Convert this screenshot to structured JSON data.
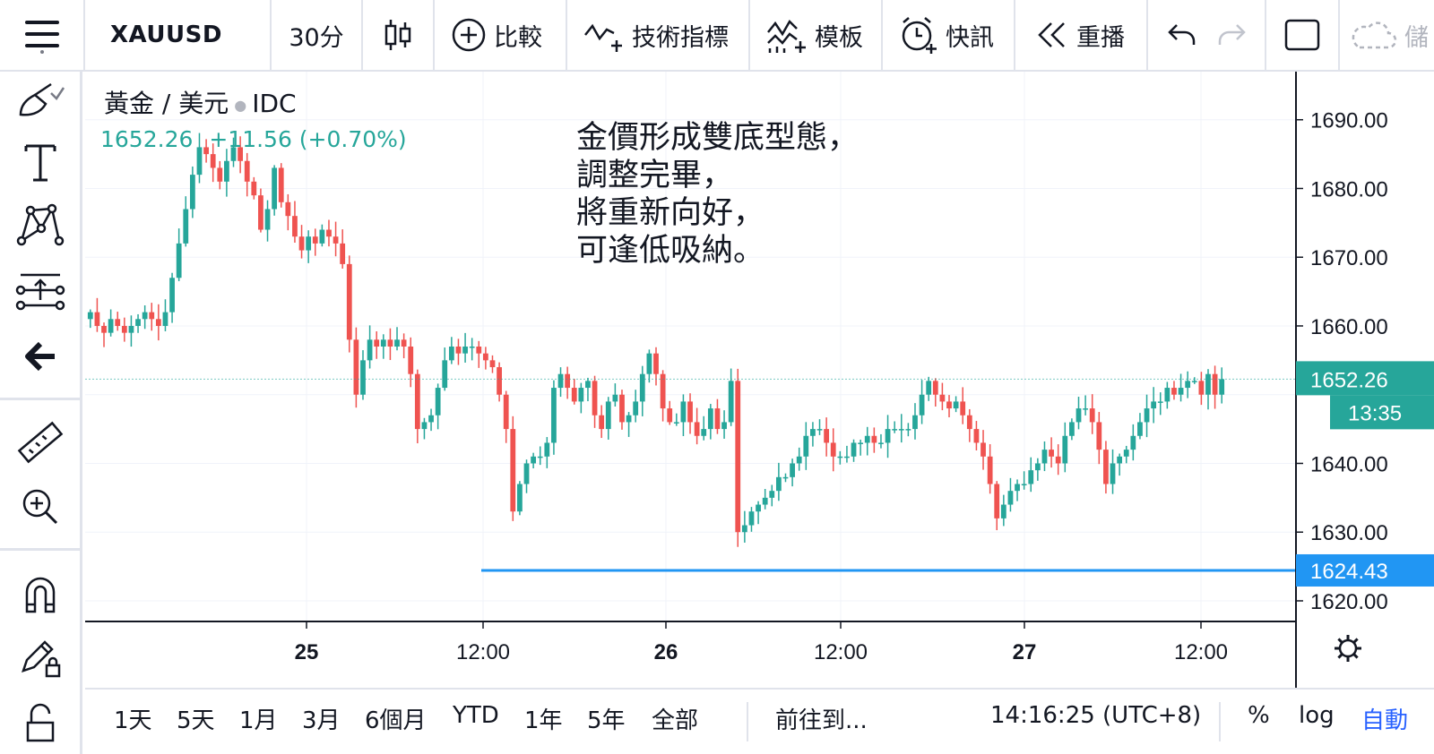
{
  "toolbar": {
    "symbol": "XAUUSD",
    "interval": "30分",
    "compare": "比較",
    "indicators": "技術指標",
    "templates": "模板",
    "alerts": "快訊",
    "replay": "重播",
    "cloud": "儲"
  },
  "legend": {
    "name": "黃金 / 美元",
    "exchange": "IDC",
    "price": "1652.26",
    "change": "+11.56 (+0.70%)"
  },
  "annotation": "金價形成雙底型態，\n調整完畢，\n將重新向好，\n可逢低吸納。",
  "price_axis": {
    "ticks": [
      "1690.00",
      "1680.00",
      "1670.00",
      "1660.00",
      "1640.00",
      "1630.00",
      "1620.00"
    ],
    "last_price": "1652.26",
    "countdown": "13:35",
    "hline_price": "1624.43"
  },
  "time_axis": {
    "labels": [
      {
        "text": "25",
        "bold": true
      },
      {
        "text": "12:00",
        "bold": false
      },
      {
        "text": "26",
        "bold": true
      },
      {
        "text": "12:00",
        "bold": false
      },
      {
        "text": "27",
        "bold": true
      },
      {
        "text": "12:00",
        "bold": false
      }
    ]
  },
  "bottombar": {
    "ranges": [
      "1天",
      "5天",
      "1月",
      "3月",
      "6個月",
      "YTD",
      "1年",
      "5年",
      "全部"
    ],
    "goto": "前往到...",
    "clock": "14:16:25 (UTC+8)",
    "percent": "%",
    "log": "log",
    "auto": "自動"
  },
  "colors": {
    "up": "#26a69a",
    "down": "#ef5350",
    "hline": "#2196f3",
    "auto_active": "#2962ff"
  },
  "chart_data": {
    "type": "candlestick",
    "ylim": [
      1617,
      1697
    ],
    "hline": 1624.43,
    "last": 1652.26,
    "time_labels": [
      "25",
      "12:00",
      "26",
      "12:00",
      "27",
      "12:00"
    ],
    "closes": [
      1662,
      1660,
      1659,
      1661,
      1660,
      1659,
      1660,
      1661,
      1662,
      1661,
      1660,
      1662,
      1667,
      1672,
      1677,
      1682,
      1686,
      1685,
      1683,
      1681,
      1684,
      1686,
      1684,
      1681,
      1679,
      1674,
      1677,
      1683,
      1678,
      1676,
      1673,
      1671,
      1673,
      1672,
      1674,
      1673,
      1672,
      1669,
      1658,
      1650,
      1655,
      1658,
      1657,
      1658,
      1657,
      1658,
      1657,
      1653,
      1645,
      1646,
      1647,
      1651,
      1655,
      1657,
      1656,
      1657,
      1657,
      1656,
      1655,
      1654,
      1650,
      1645,
      1633,
      1637,
      1640,
      1641,
      1641,
      1643,
      1651,
      1653,
      1651,
      1649,
      1651,
      1652,
      1647,
      1645,
      1649,
      1650,
      1646,
      1647,
      1649,
      1653,
      1656,
      1653,
      1648,
      1646,
      1646,
      1649,
      1646,
      1644,
      1645,
      1648,
      1645,
      1646,
      1652,
      1630,
      1631,
      1633,
      1634,
      1635,
      1636,
      1638,
      1638,
      1640,
      1641,
      1644,
      1645,
      1645,
      1643,
      1641,
      1641,
      1641,
      1643,
      1643,
      1644,
      1643,
      1643,
      1645,
      1645,
      1645,
      1645,
      1647,
      1650,
      1652,
      1650,
      1649,
      1648,
      1649,
      1647,
      1645,
      1643,
      1641,
      1637,
      1632,
      1634,
      1636,
      1637,
      1637,
      1639,
      1640,
      1642,
      1641,
      1640,
      1644,
      1646,
      1648,
      1648,
      1646,
      1642,
      1637,
      1640,
      1641,
      1642,
      1644,
      1646,
      1648,
      1649,
      1649,
      1651,
      1650,
      1651,
      1652,
      1652,
      1650,
      1653,
      1650,
      1652.26
    ]
  }
}
